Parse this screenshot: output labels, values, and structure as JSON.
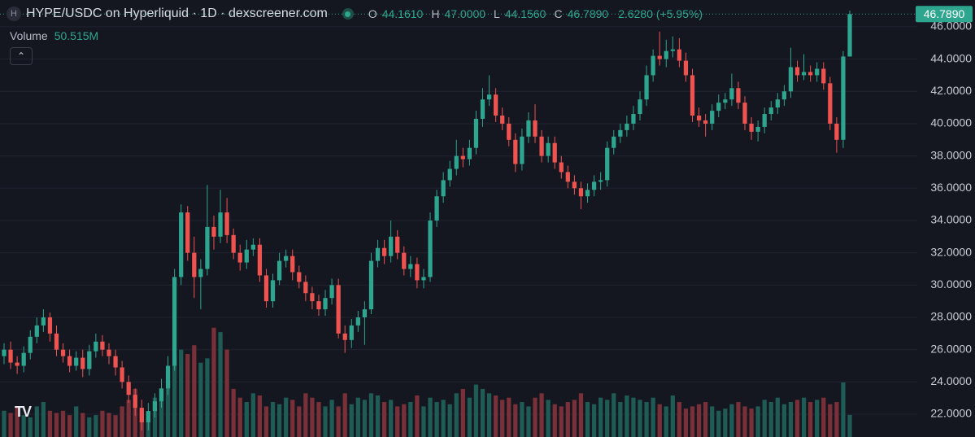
{
  "chart_data": {
    "type": "candlestick",
    "title": "HYPE/USDC on Hyperliquid · 1D · dexscreener.com",
    "legend": [
      {
        "key": "O",
        "value": "44.1610"
      },
      {
        "key": "H",
        "value": "47.0000"
      },
      {
        "key": "L",
        "value": "44.1560"
      },
      {
        "key": "C",
        "value": "46.7890"
      }
    ],
    "change": "2.6280 (+5.95%)",
    "volume_title": "Volume",
    "volume_value": "50.515M",
    "last_price_label": "46.7890",
    "up_color": "#2ea58f",
    "down_color": "#ef5350",
    "up_volume_color": "#1f5c55",
    "down_volume_color": "#7a3038",
    "ylim": [
      20.59,
      47.66
    ],
    "yticks": [
      {
        "value": 22,
        "label": "22.0000"
      },
      {
        "value": 24,
        "label": "24.0000"
      },
      {
        "value": 26,
        "label": "26.0000"
      },
      {
        "value": 28,
        "label": "28.0000"
      },
      {
        "value": 30,
        "label": "30.0000"
      },
      {
        "value": 32,
        "label": "32.0000"
      },
      {
        "value": 34,
        "label": "34.0000"
      },
      {
        "value": 36,
        "label": "36.0000"
      },
      {
        "value": 38,
        "label": "38.0000"
      },
      {
        "value": 40,
        "label": "40.0000"
      },
      {
        "value": 42,
        "label": "42.0000"
      },
      {
        "value": 44,
        "label": "44.0000"
      },
      {
        "value": 46,
        "label": "46.0000"
      }
    ],
    "grid": true,
    "volume_ylim": [
      0,
      1000
    ],
    "open": [
      25.6,
      26.0,
      25.2,
      25.0,
      25.8,
      26.8,
      27.5,
      28.0,
      27.0,
      26.0,
      25.6,
      25.0,
      25.5,
      24.8,
      25.9,
      26.5,
      26.0,
      25.6,
      24.9,
      24.0,
      23.2,
      22.4,
      21.5,
      22.2,
      22.8,
      23.6,
      25.0,
      30.5,
      34.5,
      32.0,
      30.5,
      31.0,
      33.6,
      33.0,
      34.5,
      33.1,
      32.0,
      31.4,
      32.2,
      32.5,
      30.6,
      29.0,
      30.3,
      31.5,
      31.8,
      30.8,
      30.2,
      29.5,
      29.0,
      28.5,
      29.2,
      30.0,
      27.0,
      26.6,
      27.5,
      28.0,
      28.5,
      31.5,
      32.3,
      31.8,
      33.0,
      32.0,
      31.0,
      31.3,
      30.3,
      30.5,
      34.0,
      35.5,
      36.5,
      37.2,
      38.0,
      37.8,
      38.5,
      40.3,
      41.5,
      41.8,
      40.5,
      40.0,
      39.0,
      37.5,
      39.2,
      40.2,
      39.2,
      38.0,
      38.8,
      37.6,
      37.0,
      36.4,
      36.0,
      35.5,
      35.9,
      36.4,
      36.5,
      38.5,
      39.2,
      39.6,
      40.0,
      40.6,
      41.5,
      43.0,
      44.2,
      44.0,
      44.5,
      44.6,
      43.9,
      43.0,
      40.5,
      40.2,
      40.0,
      40.8,
      41.3,
      41.5,
      42.2,
      41.3,
      40.0,
      39.5,
      39.8,
      40.6,
      41.0,
      41.5,
      42.0,
      43.5,
      43.0,
      43.2,
      43.0,
      43.4,
      42.5,
      40.0,
      39.0,
      44.161
    ],
    "high": [
      26.4,
      26.5,
      25.6,
      26.2,
      27.2,
      28.0,
      28.5,
      28.3,
      27.5,
      26.4,
      26.0,
      25.9,
      26.0,
      26.3,
      27.0,
      26.9,
      26.4,
      26.0,
      25.3,
      24.4,
      23.6,
      22.9,
      22.7,
      23.3,
      24.2,
      25.6,
      31.0,
      35.0,
      34.9,
      33.0,
      31.6,
      36.2,
      34.3,
      35.9,
      35.4,
      33.5,
      32.5,
      32.8,
      32.9,
      32.9,
      31.0,
      30.7,
      32.0,
      32.2,
      32.2,
      31.2,
      30.6,
      29.9,
      29.4,
      29.7,
      30.4,
      30.4,
      27.5,
      27.9,
      28.4,
      29.0,
      32.0,
      32.8,
      32.8,
      34.0,
      33.4,
      32.4,
      31.8,
      31.7,
      31.0,
      34.5,
      35.9,
      37.0,
      37.7,
      39.0,
      38.5,
      39.0,
      40.8,
      42.2,
      43.0,
      42.2,
      41.0,
      40.4,
      39.4,
      39.7,
      40.7,
      41.2,
      39.6,
      39.2,
      39.2,
      38.0,
      37.4,
      36.8,
      36.4,
      36.3,
      36.8,
      37.0,
      38.9,
      39.6,
      40.0,
      40.5,
      41.1,
      42.0,
      43.6,
      44.6,
      45.7,
      45.2,
      45.4,
      45.3,
      44.4,
      43.4,
      41.0,
      40.6,
      41.2,
      41.8,
      41.9,
      43.1,
      42.6,
      41.7,
      40.4,
      40.2,
      41.0,
      41.4,
      41.9,
      42.4,
      44.7,
      43.9,
      44.3,
      43.6,
      43.8,
      43.8,
      42.9,
      40.4,
      44.5,
      47.0
    ],
    "low": [
      25.1,
      24.8,
      24.5,
      24.6,
      25.4,
      26.4,
      27.1,
      26.5,
      25.6,
      25.2,
      24.6,
      24.7,
      24.3,
      24.4,
      25.5,
      25.6,
      25.1,
      24.4,
      23.6,
      22.7,
      21.9,
      21.0,
      21.0,
      21.8,
      22.4,
      23.2,
      24.7,
      30.0,
      31.5,
      29.2,
      28.5,
      30.6,
      32.2,
      32.6,
      32.6,
      31.6,
      30.9,
      31.0,
      31.8,
      30.2,
      28.6,
      28.6,
      30.0,
      31.1,
      30.3,
      29.8,
      29.0,
      28.5,
      28.1,
      28.1,
      28.8,
      26.7,
      25.8,
      26.1,
      27.1,
      26.3,
      28.2,
      31.1,
      31.3,
      31.4,
      31.6,
      30.6,
      30.5,
      29.8,
      29.8,
      30.2,
      33.6,
      35.1,
      36.1,
      36.8,
      37.3,
      37.4,
      38.1,
      39.8,
      41.1,
      40.1,
      39.6,
      38.6,
      37.0,
      37.1,
      38.8,
      38.8,
      37.6,
      37.6,
      37.2,
      36.6,
      36.0,
      35.6,
      34.7,
      35.1,
      35.5,
      35.9,
      36.1,
      38.1,
      38.8,
      39.2,
      39.6,
      40.2,
      41.1,
      42.6,
      43.6,
      43.5,
      44.1,
      43.5,
      42.6,
      40.1,
      39.8,
      39.2,
      39.6,
      40.4,
      40.9,
      41.1,
      40.9,
      39.6,
      39.0,
      38.9,
      39.4,
      40.2,
      40.6,
      41.1,
      41.6,
      42.6,
      42.7,
      42.6,
      42.6,
      42.1,
      39.6,
      38.2,
      38.5,
      44.156
    ],
    "close": [
      26.0,
      25.2,
      25.0,
      25.8,
      26.8,
      27.5,
      28.0,
      27.0,
      26.0,
      25.6,
      25.0,
      25.5,
      24.8,
      25.9,
      26.5,
      26.0,
      25.6,
      24.9,
      24.0,
      23.2,
      22.4,
      21.5,
      22.2,
      22.8,
      23.6,
      25.0,
      30.5,
      34.5,
      32.0,
      30.5,
      31.0,
      33.6,
      33.0,
      34.5,
      33.1,
      32.0,
      31.4,
      32.2,
      32.5,
      30.6,
      29.0,
      30.3,
      31.5,
      31.8,
      30.8,
      30.2,
      29.5,
      29.0,
      28.5,
      29.2,
      30.0,
      27.0,
      26.6,
      27.5,
      28.0,
      28.5,
      31.5,
      32.3,
      31.8,
      33.0,
      32.0,
      31.0,
      31.3,
      30.3,
      30.5,
      34.0,
      35.5,
      36.5,
      37.2,
      38.0,
      37.8,
      38.5,
      40.3,
      41.5,
      41.8,
      40.5,
      40.0,
      39.0,
      37.5,
      39.2,
      40.2,
      39.2,
      38.0,
      38.8,
      37.6,
      37.0,
      36.4,
      36.0,
      35.5,
      35.9,
      36.4,
      36.5,
      38.5,
      39.2,
      39.6,
      40.0,
      40.6,
      41.5,
      43.0,
      44.2,
      44.0,
      44.5,
      44.6,
      43.9,
      43.0,
      40.5,
      40.2,
      40.0,
      40.8,
      41.3,
      41.5,
      42.2,
      41.3,
      40.0,
      39.5,
      39.8,
      40.6,
      41.0,
      41.5,
      42.0,
      43.5,
      43.0,
      43.2,
      43.0,
      43.4,
      42.5,
      40.0,
      39.0,
      44.161,
      46.789
    ],
    "volume": [
      60,
      55,
      70,
      50,
      45,
      70,
      80,
      60,
      55,
      60,
      50,
      70,
      55,
      45,
      50,
      60,
      55,
      50,
      70,
      85,
      110,
      60,
      55,
      90,
      110,
      150,
      185,
      200,
      190,
      210,
      170,
      180,
      250,
      240,
      200,
      110,
      90,
      80,
      100,
      95,
      70,
      80,
      75,
      90,
      85,
      70,
      100,
      90,
      80,
      70,
      85,
      70,
      100,
      75,
      90,
      85,
      100,
      95,
      80,
      85,
      70,
      75,
      80,
      95,
      70,
      90,
      80,
      85,
      75,
      100,
      110,
      90,
      120,
      110,
      100,
      95,
      85,
      90,
      75,
      80,
      70,
      90,
      100,
      85,
      75,
      70,
      80,
      85,
      100,
      80,
      75,
      90,
      85,
      100,
      80,
      95,
      90,
      85,
      80,
      90,
      75,
      70,
      95,
      80,
      65,
      70,
      75,
      80,
      70,
      60,
      65,
      75,
      80,
      70,
      65,
      70,
      85,
      80,
      90,
      75,
      80,
      85,
      90,
      80,
      85,
      90,
      75,
      80,
      125,
      50.515
    ]
  }
}
